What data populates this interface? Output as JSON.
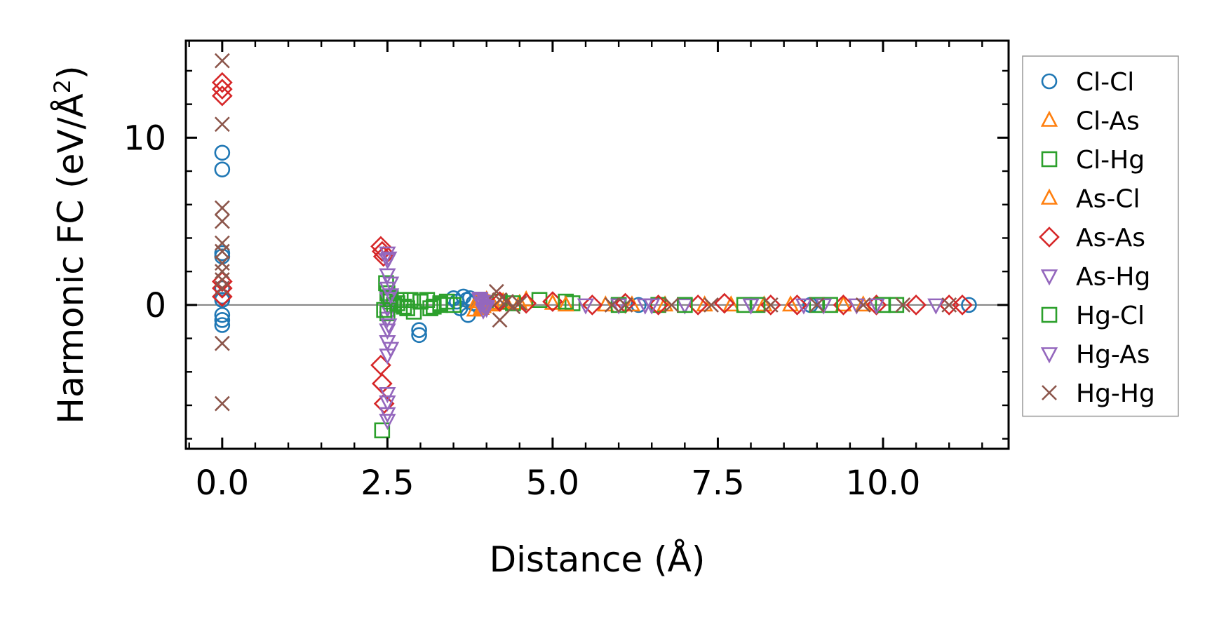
{
  "chart_data": {
    "type": "scatter",
    "title": "",
    "xlabel": "Distance (Å)",
    "ylabel_prefix": "Harmonic FC (eV/Å",
    "ylabel_sup": "2",
    "ylabel_suffix": ")",
    "xlim": [
      -0.55,
      11.9
    ],
    "ylim": [
      -8.6,
      15.8
    ],
    "xticks": [
      0.0,
      2.5,
      5.0,
      7.5,
      10.0
    ],
    "xtick_labels": [
      "0.0",
      "2.5",
      "5.0",
      "7.5",
      "10.0"
    ],
    "yticks": [
      0,
      10
    ],
    "ytick_labels": [
      "0",
      "10"
    ],
    "reference_line_y": 0,
    "grid": false,
    "legend_position": "outside-right",
    "series": [
      {
        "name": "Cl-Cl",
        "marker": "circle",
        "color": "#1f77b4",
        "x": [
          0.0,
          0.0,
          0.0,
          0.0,
          0.0,
          0.0,
          0.0,
          0.0,
          0.0,
          0.0,
          2.98,
          2.98,
          3.5,
          3.55,
          3.6,
          3.65,
          3.7,
          3.72,
          3.75,
          3.8,
          6.3,
          8.9,
          11.3
        ],
        "y": [
          9.1,
          8.1,
          3.1,
          2.9,
          1.0,
          0.5,
          0.3,
          -0.6,
          -0.9,
          -1.2,
          -1.5,
          -1.8,
          0.4,
          0.2,
          -0.2,
          0.5,
          0.3,
          -0.6,
          0.4,
          0.1,
          0.0,
          0.0,
          0.0
        ]
      },
      {
        "name": "Cl-As",
        "marker": "triangle-up",
        "color": "#ff7f0e",
        "x": [
          3.82,
          3.9,
          3.95,
          4.0,
          4.1,
          4.3,
          4.6,
          5.0,
          5.8,
          6.7,
          7.7,
          8.6,
          9.4
        ],
        "y": [
          -0.3,
          0.2,
          -0.1,
          0.3,
          0.0,
          0.1,
          0.3,
          0.1,
          0.0,
          0.0,
          0.0,
          0.0,
          0.0
        ]
      },
      {
        "name": "Cl-Hg",
        "marker": "square",
        "color": "#2ca02c",
        "x": [
          2.42,
          2.48,
          2.5,
          2.52,
          2.55,
          2.6,
          2.7,
          2.8,
          2.9,
          3.0,
          3.1,
          3.2,
          3.3,
          3.4,
          3.5,
          4.2,
          4.8,
          5.3,
          6.6,
          7.9,
          9.0,
          10.2
        ],
        "y": [
          -7.5,
          1.3,
          0.7,
          0.4,
          0.2,
          0.0,
          0.3,
          -0.2,
          -0.4,
          0.2,
          0.3,
          -0.1,
          0.0,
          0.2,
          0.0,
          0.2,
          0.3,
          0.1,
          0.0,
          0.0,
          0.0,
          0.0
        ]
      },
      {
        "name": "As-Cl",
        "marker": "triangle-up",
        "color": "#ff7f0e",
        "x": [
          3.85,
          3.92,
          4.05,
          4.25,
          4.5,
          5.2,
          6.2,
          7.3,
          8.2,
          9.7
        ],
        "y": [
          0.2,
          -0.2,
          0.1,
          0.2,
          0.1,
          0.0,
          0.0,
          0.0,
          0.0,
          0.0
        ]
      },
      {
        "name": "As-As",
        "marker": "diamond",
        "color": "#d62728",
        "x": [
          0.0,
          0.0,
          0.0,
          0.0,
          0.0,
          0.0,
          2.4,
          2.42,
          2.44,
          2.4,
          2.42,
          2.45,
          4.2,
          4.6,
          5.0,
          5.6,
          6.1,
          6.6,
          7.2,
          7.6,
          8.3,
          8.7,
          9.4,
          9.9,
          10.5,
          11.0,
          11.2
        ],
        "y": [
          13.3,
          12.9,
          12.5,
          1.4,
          1.0,
          0.5,
          3.5,
          3.2,
          2.9,
          -3.6,
          -4.7,
          -5.9,
          0.2,
          0.1,
          0.2,
          0.0,
          0.1,
          0.0,
          0.0,
          0.1,
          0.0,
          0.0,
          0.0,
          0.0,
          0.0,
          0.0,
          0.0
        ]
      },
      {
        "name": "As-Hg",
        "marker": "triangle-down",
        "color": "#9467bd",
        "x": [
          2.5,
          2.5,
          2.5,
          2.5,
          2.5,
          2.5,
          2.5,
          2.5,
          2.5,
          2.5,
          2.5,
          2.5,
          2.5,
          2.5,
          3.9,
          3.95,
          4.0,
          5.5,
          6.4,
          7.0,
          8.0,
          8.8,
          9.6,
          10.8
        ],
        "y": [
          3.1,
          2.7,
          1.8,
          1.0,
          0.4,
          -0.2,
          -0.8,
          -1.5,
          -2.2,
          -3.0,
          -5.3,
          -5.8,
          -6.5,
          -6.9,
          0.3,
          0.0,
          -0.2,
          0.0,
          0.0,
          0.0,
          0.0,
          0.0,
          0.0,
          0.0
        ]
      },
      {
        "name": "Hg-Cl",
        "marker": "square",
        "color": "#2ca02c",
        "x": [
          2.45,
          2.5,
          2.55,
          2.65,
          2.75,
          2.85,
          3.0,
          3.15,
          3.3,
          4.4,
          5.2,
          6.0,
          7.0,
          8.1,
          9.2,
          10.0
        ],
        "y": [
          -0.3,
          -0.5,
          0.5,
          0.1,
          -0.1,
          0.3,
          0.2,
          -0.2,
          0.1,
          0.1,
          0.2,
          0.0,
          0.0,
          0.0,
          0.0,
          0.0
        ]
      },
      {
        "name": "Hg-As",
        "marker": "triangle-down",
        "color": "#9467bd",
        "x": [
          2.52,
          2.55,
          2.55,
          2.52,
          2.55,
          3.9,
          3.92,
          3.95,
          3.98,
          4.0,
          6.0,
          6.4,
          6.5,
          8.0,
          9.1,
          9.9
        ],
        "y": [
          2.8,
          1.3,
          0.6,
          -1.2,
          -2.6,
          0.4,
          0.1,
          -0.3,
          0.2,
          -0.1,
          0.0,
          0.0,
          0.0,
          0.0,
          0.0,
          0.0
        ]
      },
      {
        "name": "Hg-Hg",
        "marker": "x",
        "color": "#8c564b",
        "x": [
          0.0,
          0.0,
          0.0,
          0.0,
          0.0,
          0.0,
          0.0,
          0.0,
          0.0,
          0.0,
          0.0,
          0.0,
          4.15,
          4.2,
          4.2,
          4.3,
          4.4,
          4.5,
          5.9,
          6.1,
          6.8,
          7.4,
          8.3,
          9.0,
          9.7,
          10.3,
          11.0
        ],
        "y": [
          14.6,
          10.8,
          5.8,
          5.0,
          3.7,
          3.2,
          2.5,
          2.0,
          1.5,
          -2.3,
          -5.9,
          1.0,
          0.8,
          0.3,
          -0.9,
          0.2,
          -0.1,
          0.1,
          0.0,
          0.0,
          0.0,
          0.0,
          0.0,
          0.0,
          0.0,
          0.0,
          0.0
        ]
      }
    ]
  }
}
